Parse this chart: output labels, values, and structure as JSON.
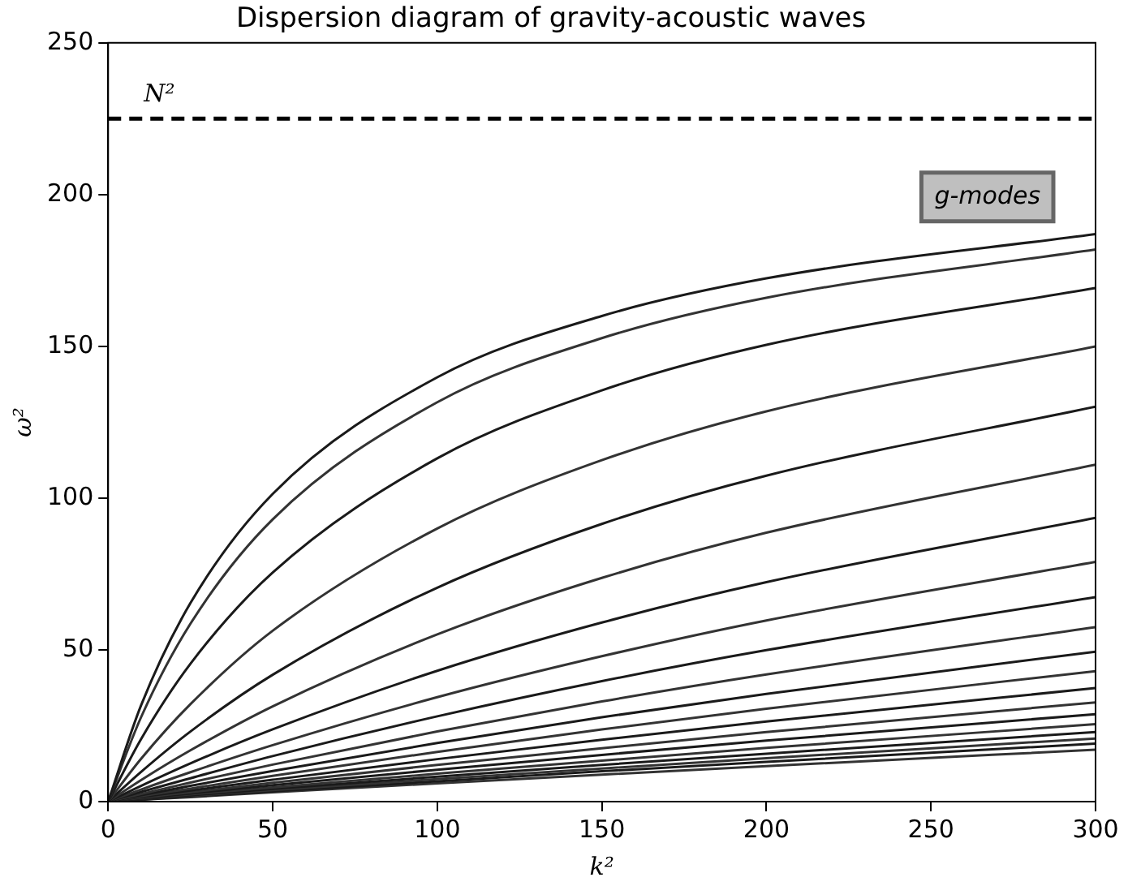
{
  "chart_data": {
    "type": "line",
    "title": "Dispersion diagram of gravity-acoustic waves",
    "xlabel": "k²",
    "ylabel": "ω²",
    "x": [
      0,
      10,
      25,
      50,
      100,
      150,
      200,
      300
    ],
    "xlim": [
      0,
      300
    ],
    "xticks": [
      0,
      50,
      100,
      150,
      200,
      250,
      300
    ],
    "ylim": [
      0,
      250
    ],
    "yticks": [
      0,
      50,
      100,
      150,
      200,
      250
    ],
    "grid": false,
    "legend": false,
    "marker": "none",
    "line_style": "solid",
    "series": [
      {
        "color": "#1a1a1a",
        "values": [
          0,
          31.7,
          65.4,
          101.4,
          139.8,
          160,
          172.4,
          187
        ]
      },
      {
        "color": "#333333",
        "values": [
          0,
          27.8,
          58.6,
          93,
          131.6,
          152.7,
          166,
          181.9
        ]
      },
      {
        "color": "#1a1a1a",
        "values": [
          0,
          20.6,
          45.4,
          75.5,
          113.1,
          135.5,
          150.5,
          169.2
        ]
      },
      {
        "color": "#333333",
        "values": [
          0,
          14.1,
          32.1,
          56.3,
          90,
          112.5,
          128.6,
          150
        ]
      },
      {
        "color": "#1a1a1a",
        "values": [
          0,
          9.8,
          23.1,
          41.8,
          70.5,
          91.5,
          107.4,
          130.1
        ]
      },
      {
        "color": "#333333",
        "values": [
          0,
          7.1,
          16.9,
          31.4,
          55.1,
          73.7,
          88.6,
          111
        ]
      },
      {
        "color": "#1a1a1a",
        "values": [
          0,
          5.2,
          12.6,
          23.8,
          43.1,
          59,
          72.3,
          93.5
        ]
      },
      {
        "color": "#333333",
        "values": [
          0,
          4,
          9.7,
          18.6,
          34.4,
          47.9,
          59.7,
          79
        ]
      },
      {
        "color": "#1a1a1a",
        "values": [
          0,
          3.2,
          7.7,
          15,
          28.1,
          39.7,
          49.9,
          67.4
        ]
      },
      {
        "color": "#333333",
        "values": [
          0,
          2.5,
          6.3,
          12.2,
          23.1,
          33,
          41.9,
          57.5
        ]
      },
      {
        "color": "#1a1a1a",
        "values": [
          0,
          2.1,
          5.2,
          10.1,
          19.3,
          27.8,
          35.5,
          49.4
        ]
      },
      {
        "color": "#333333",
        "values": [
          0,
          1.8,
          4.3,
          8.5,
          16.4,
          23.8,
          30.6,
          43
        ]
      },
      {
        "color": "#1a1a1a",
        "values": [
          0,
          1.5,
          3.7,
          7.2,
          14,
          20.4,
          26.4,
          37.4
        ]
      },
      {
        "color": "#333333",
        "values": [
          0,
          1.3,
          3.1,
          6.2,
          12.1,
          17.6,
          22.9,
          32.7
        ]
      },
      {
        "color": "#1a1a1a",
        "values": [
          0,
          1.1,
          2.7,
          5.4,
          10.5,
          15.4,
          20.1,
          28.8
        ]
      },
      {
        "color": "#333333",
        "values": [
          0,
          1,
          2.4,
          4.7,
          9.2,
          13.5,
          17.7,
          25.5
        ]
      },
      {
        "color": "#1a1a1a",
        "values": [
          0,
          0.8,
          2.1,
          4.2,
          8.2,
          12.1,
          15.8,
          22.9
        ]
      },
      {
        "color": "#333333",
        "values": [
          0,
          0.8,
          1.9,
          3.8,
          7.4,
          10.9,
          14.3,
          20.8
        ]
      },
      {
        "color": "#1a1a1a",
        "values": [
          0,
          0.7,
          1.7,
          3.4,
          6.7,
          10,
          13.1,
          19.1
        ]
      },
      {
        "color": "#333333",
        "values": [
          0,
          0.6,
          1.5,
          3.1,
          6,
          8.9,
          11.7,
          17.1
        ]
      }
    ],
    "ref_lines": [
      {
        "axis": "y",
        "value": 225,
        "label": "N²",
        "color": "#000000",
        "line_style": "dashed"
      }
    ],
    "annotations": [
      "g-modes"
    ]
  }
}
